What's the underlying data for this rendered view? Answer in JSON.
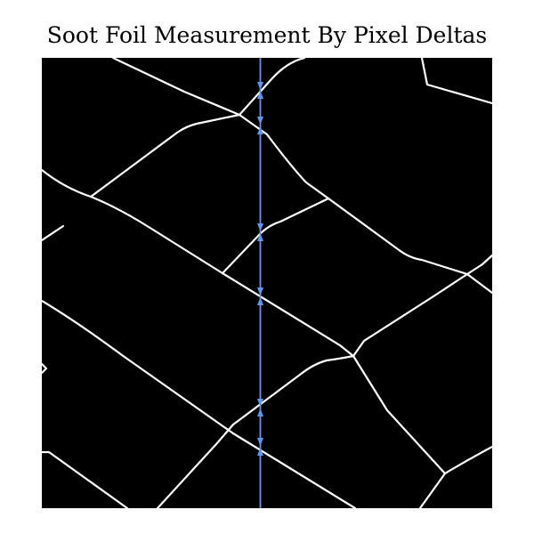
{
  "title": "Soot Foil Measurement By Pixel Deltas",
  "colors": {
    "background": "#000000",
    "cell_lines": "#ffffff",
    "measurement": "#6495ed"
  }
}
